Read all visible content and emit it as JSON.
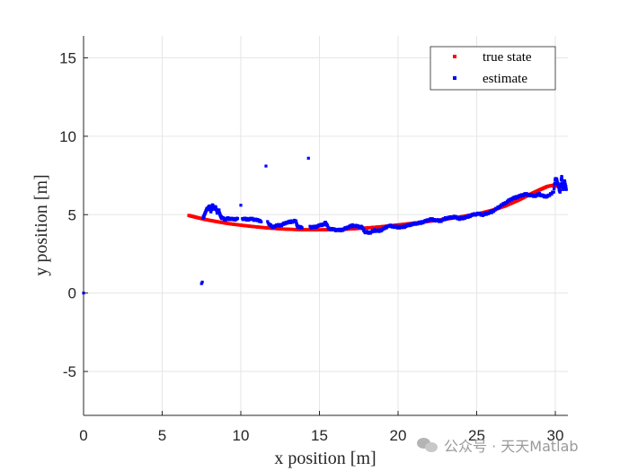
{
  "chart_data": {
    "type": "scatter",
    "title": "",
    "xlabel": "x position [m]",
    "ylabel": "y position [m]",
    "xlim": [
      0,
      30.8
    ],
    "ylim": [
      -7.8,
      16.4
    ],
    "xticks": [
      0,
      5,
      10,
      15,
      20,
      25,
      30
    ],
    "yticks": [
      -5,
      0,
      5,
      10,
      15
    ],
    "grid": true,
    "legend_position": "top-right",
    "series": [
      {
        "name": "true state",
        "color": "#ff0000",
        "points": [
          [
            6.7,
            4.95
          ],
          [
            7.2,
            4.82
          ],
          [
            7.8,
            4.68
          ],
          [
            8.5,
            4.55
          ],
          [
            9.2,
            4.43
          ],
          [
            10.0,
            4.33
          ],
          [
            10.8,
            4.24
          ],
          [
            11.6,
            4.16
          ],
          [
            12.4,
            4.1
          ],
          [
            13.2,
            4.06
          ],
          [
            14.0,
            4.04
          ],
          [
            14.8,
            4.03
          ],
          [
            15.6,
            4.04
          ],
          [
            16.4,
            4.06
          ],
          [
            17.2,
            4.1
          ],
          [
            18.0,
            4.15
          ],
          [
            18.8,
            4.22
          ],
          [
            19.6,
            4.3
          ],
          [
            20.4,
            4.39
          ],
          [
            21.2,
            4.48
          ],
          [
            22.0,
            4.58
          ],
          [
            22.8,
            4.68
          ],
          [
            23.6,
            4.8
          ],
          [
            24.4,
            4.93
          ],
          [
            25.2,
            5.08
          ],
          [
            26.0,
            5.28
          ],
          [
            26.8,
            5.55
          ],
          [
            27.6,
            5.9
          ],
          [
            28.3,
            6.25
          ],
          [
            29.0,
            6.58
          ],
          [
            29.5,
            6.8
          ],
          [
            30.0,
            6.9
          ],
          [
            30.4,
            6.7
          ]
        ]
      },
      {
        "name": "estimate",
        "color": "#0000ff",
        "points": [
          [
            0.0,
            0.0
          ],
          [
            7.5,
            0.6
          ],
          [
            7.55,
            0.7
          ],
          [
            7.6,
            4.8
          ],
          [
            7.7,
            5.0
          ],
          [
            7.8,
            5.3
          ],
          [
            7.9,
            5.4
          ],
          [
            8.0,
            5.5
          ],
          [
            8.1,
            5.2
          ],
          [
            8.2,
            5.6
          ],
          [
            8.3,
            5.4
          ],
          [
            8.4,
            5.5
          ],
          [
            8.5,
            5.1
          ],
          [
            8.6,
            5.3
          ],
          [
            8.7,
            4.9
          ],
          [
            8.8,
            4.8
          ],
          [
            9.0,
            4.7
          ],
          [
            9.2,
            4.75
          ],
          [
            9.5,
            4.7
          ],
          [
            9.8,
            4.72
          ],
          [
            10.0,
            5.6
          ],
          [
            10.1,
            4.75
          ],
          [
            10.4,
            4.7
          ],
          [
            10.7,
            4.72
          ],
          [
            11.0,
            4.65
          ],
          [
            11.3,
            4.6
          ],
          [
            11.6,
            8.1
          ],
          [
            11.7,
            4.5
          ],
          [
            12.0,
            4.2
          ],
          [
            12.3,
            4.3
          ],
          [
            12.6,
            4.35
          ],
          [
            12.9,
            4.5
          ],
          [
            13.2,
            4.55
          ],
          [
            13.5,
            4.6
          ],
          [
            13.6,
            4.2
          ],
          [
            13.9,
            4.22
          ],
          [
            14.3,
            8.6
          ],
          [
            14.4,
            4.2
          ],
          [
            14.7,
            4.2
          ],
          [
            15.0,
            4.3
          ],
          [
            15.3,
            4.4
          ],
          [
            15.4,
            4.5
          ],
          [
            15.6,
            4.1
          ],
          [
            15.9,
            4.05
          ],
          [
            16.2,
            4.0
          ],
          [
            16.5,
            4.05
          ],
          [
            16.8,
            4.2
          ],
          [
            17.1,
            4.3
          ],
          [
            17.4,
            4.25
          ],
          [
            17.7,
            4.2
          ],
          [
            17.9,
            3.9
          ],
          [
            18.2,
            3.85
          ],
          [
            18.5,
            4.0
          ],
          [
            18.8,
            3.95
          ],
          [
            19.1,
            4.1
          ],
          [
            19.4,
            4.3
          ],
          [
            19.7,
            4.25
          ],
          [
            20.0,
            4.2
          ],
          [
            20.3,
            4.2
          ],
          [
            20.6,
            4.3
          ],
          [
            20.9,
            4.4
          ],
          [
            21.2,
            4.45
          ],
          [
            21.5,
            4.5
          ],
          [
            21.8,
            4.6
          ],
          [
            22.1,
            4.7
          ],
          [
            22.4,
            4.65
          ],
          [
            22.7,
            4.6
          ],
          [
            23.0,
            4.75
          ],
          [
            23.3,
            4.8
          ],
          [
            23.6,
            4.85
          ],
          [
            23.9,
            4.75
          ],
          [
            24.2,
            4.8
          ],
          [
            24.5,
            4.9
          ],
          [
            24.8,
            5.0
          ],
          [
            25.1,
            5.05
          ],
          [
            25.4,
            5.0
          ],
          [
            25.7,
            5.1
          ],
          [
            26.0,
            5.2
          ],
          [
            26.3,
            5.4
          ],
          [
            26.6,
            5.6
          ],
          [
            26.9,
            5.8
          ],
          [
            27.2,
            6.0
          ],
          [
            27.5,
            6.1
          ],
          [
            27.8,
            6.2
          ],
          [
            28.1,
            6.3
          ],
          [
            28.4,
            6.25
          ],
          [
            28.7,
            6.2
          ],
          [
            29.0,
            6.3
          ],
          [
            29.3,
            6.15
          ],
          [
            29.6,
            6.2
          ],
          [
            29.9,
            6.5
          ],
          [
            30.0,
            7.3
          ],
          [
            30.1,
            7.2
          ],
          [
            30.2,
            6.8
          ],
          [
            30.3,
            6.4
          ],
          [
            30.4,
            7.5
          ],
          [
            30.5,
            6.6
          ],
          [
            30.6,
            7.1
          ],
          [
            30.7,
            6.6
          ]
        ]
      }
    ]
  },
  "watermark": "公众号 · 天天Matlab"
}
